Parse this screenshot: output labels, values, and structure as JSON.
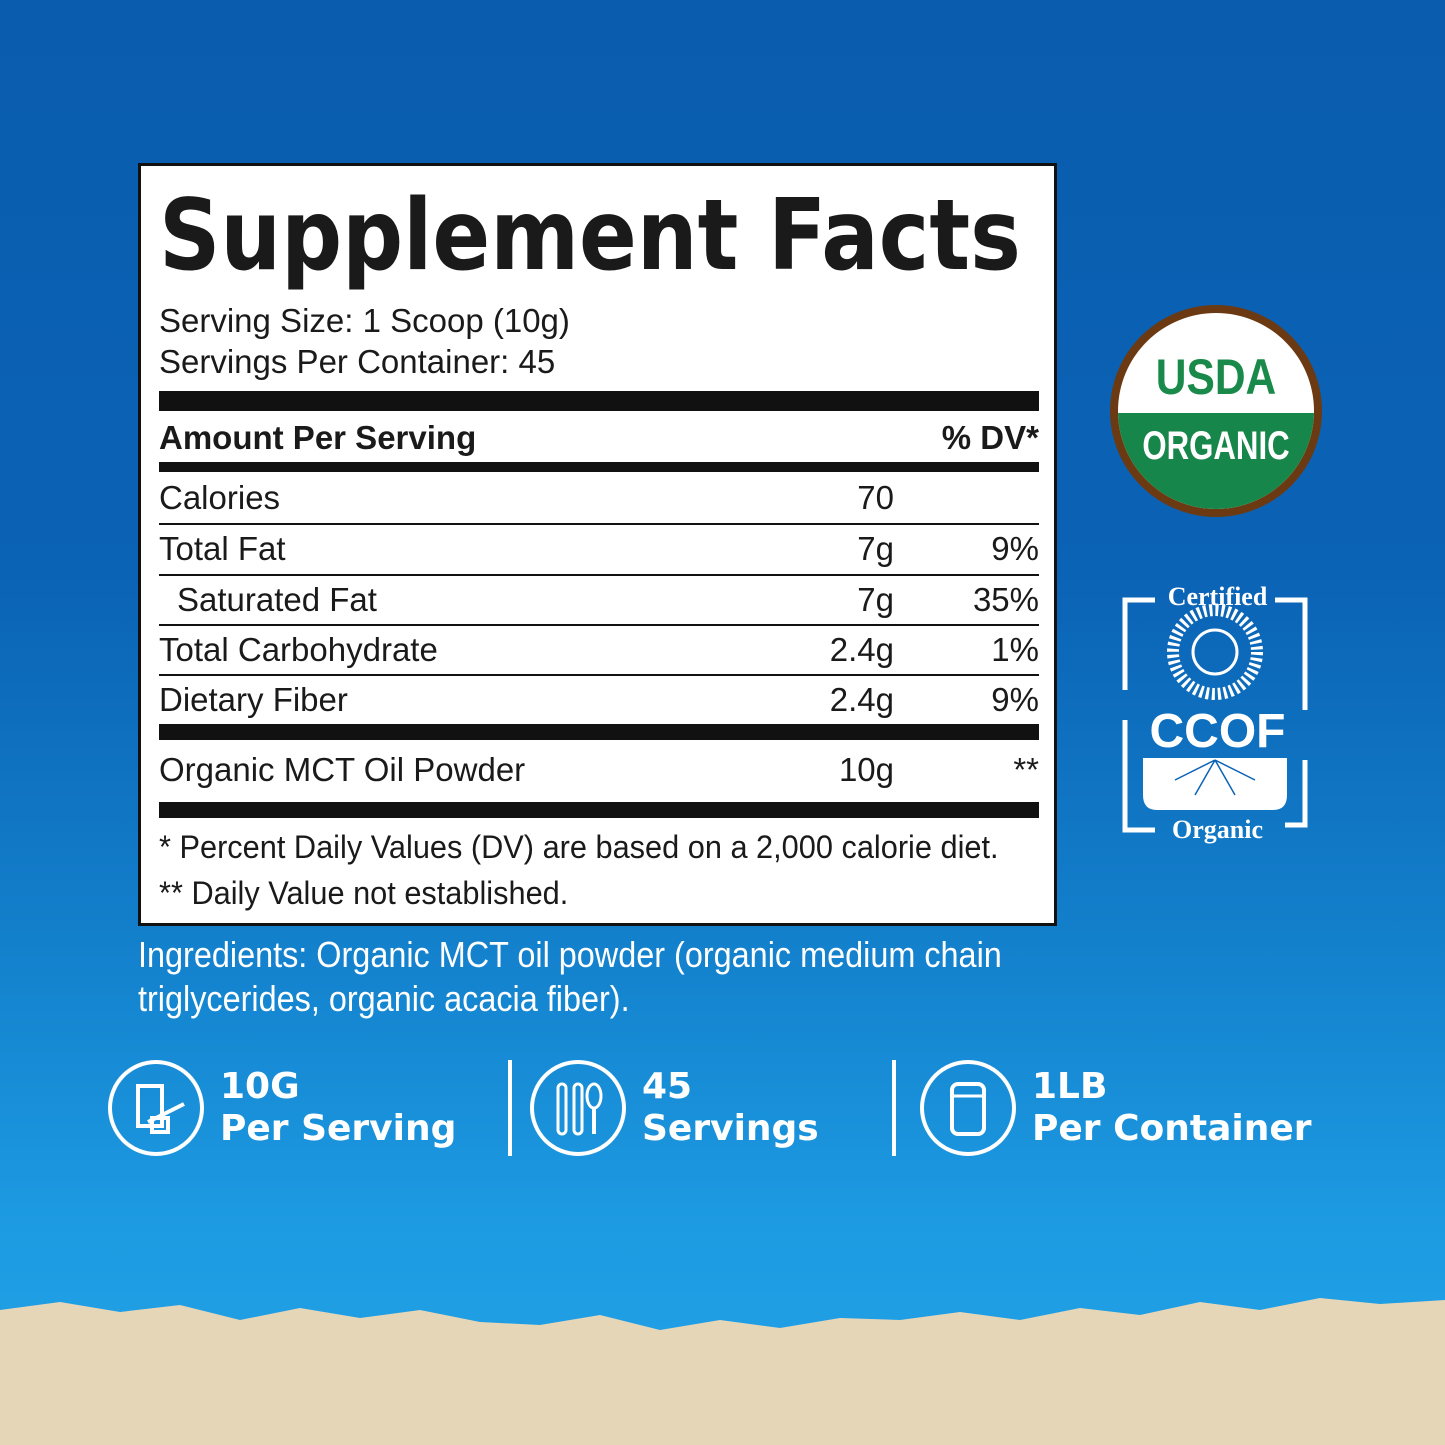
{
  "label": {
    "title": "Supplement Facts",
    "serving_size": "Serving Size: 1 Scoop (10g)",
    "servings_per_container": "Servings Per Container: 45",
    "header": {
      "amount": "Amount Per Serving",
      "dv": "% DV*"
    },
    "rows": [
      {
        "name": "Calories",
        "amount": "70",
        "dv": ""
      },
      {
        "name": "Total Fat",
        "amount": "7g",
        "dv": "9%"
      },
      {
        "name": "Saturated Fat",
        "amount": "7g",
        "dv": "35%"
      },
      {
        "name": "Total Carbohydrate",
        "amount": "2.4g",
        "dv": "1%"
      },
      {
        "name": "Dietary Fiber",
        "amount": "2.4g",
        "dv": "9%"
      },
      {
        "name": "Organic MCT Oil Powder",
        "amount": "10g",
        "dv": "**"
      }
    ],
    "footnote1": "* Percent Daily Values (DV) are based on a 2,000 calorie diet.",
    "footnote2": "** Daily Value not established."
  },
  "ingredients": "Ingredients: Organic MCT oil powder (organic medium chain triglycerides, organic acacia fiber).",
  "badges": {
    "usda_top": "USDA",
    "usda_bottom": "ORGANIC",
    "ccof_top": "Certified",
    "ccof_mid": "CCOF",
    "ccof_bottom": "Organic"
  },
  "stats": [
    {
      "value": "10G",
      "label": "Per Serving",
      "icon": "scoop-glass-icon"
    },
    {
      "value": "45",
      "label": "Servings",
      "icon": "utensils-icon"
    },
    {
      "value": "1LB",
      "label": "Per Container",
      "icon": "container-icon"
    }
  ],
  "colors": {
    "background_top": "#0a5cae",
    "background_bottom": "#22a3e8",
    "usda_green": "#17864a",
    "usda_ring": "#6b3a12",
    "sand": "#e6d6b8"
  }
}
